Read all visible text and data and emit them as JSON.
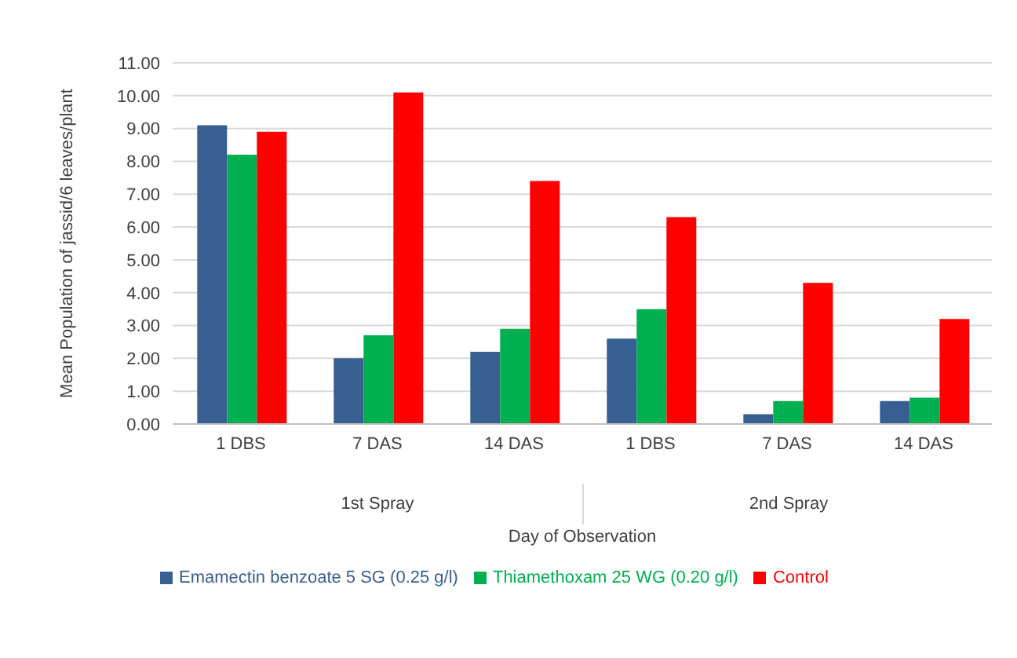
{
  "chart_data": {
    "type": "bar",
    "xlabel": "Day of Observation",
    "ylabel": "Mean Population of jassid/6 leaves/plant",
    "categories": [
      "1 DBS",
      "7 DAS",
      "14 DAS",
      "1 DBS",
      "7 DAS",
      "14 DAS"
    ],
    "series": [
      {
        "name": "Emamectin benzoate 5 SG (0.25 g/l)",
        "color": "#375f91",
        "values": [
          9.1,
          2.0,
          2.2,
          2.6,
          0.3,
          0.7
        ]
      },
      {
        "name": "Thiamethoxam 25 WG (0.20 g/l)",
        "color": "#00b050",
        "values": [
          8.2,
          2.7,
          2.9,
          3.5,
          0.7,
          0.8
        ]
      },
      {
        "name": "Control",
        "color": "#ff0000",
        "values": [
          8.9,
          10.1,
          7.4,
          6.3,
          4.3,
          3.2
        ]
      }
    ],
    "annotations": [
      "1st Spray",
      "2nd Spray"
    ],
    "ylim": [
      0,
      11
    ],
    "yticks": [
      {
        "value": 0,
        "label": "0.00"
      },
      {
        "value": 1,
        "label": "1.00"
      },
      {
        "value": 2,
        "label": "2.00"
      },
      {
        "value": 3,
        "label": "3.00"
      },
      {
        "value": 4,
        "label": "4.00"
      },
      {
        "value": 5,
        "label": "5.00"
      },
      {
        "value": 6,
        "label": "6.00"
      },
      {
        "value": 7,
        "label": "7.00"
      },
      {
        "value": 8,
        "label": "8.00"
      },
      {
        "value": 9,
        "label": "9.00"
      },
      {
        "value": 10,
        "label": "10.00"
      },
      {
        "value": 11,
        "label": "11.00"
      }
    ],
    "grid": "y",
    "legend": "bottom"
  }
}
